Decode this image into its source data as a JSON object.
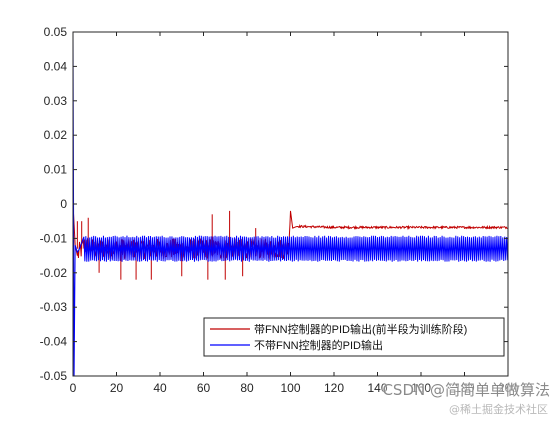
{
  "chart_data": {
    "type": "line",
    "title": "",
    "xlabel": "",
    "ylabel": "",
    "xlim": [
      0,
      200
    ],
    "ylim": [
      -0.05,
      0.05
    ],
    "x_ticks": [
      0,
      20,
      40,
      60,
      80,
      100,
      120,
      140,
      160,
      180,
      200
    ],
    "y_ticks": [
      0.05,
      0.04,
      0.03,
      0.02,
      0.01,
      0,
      -0.01,
      -0.02,
      -0.03,
      -0.04,
      -0.05
    ],
    "x_tick_labels": [
      "0",
      "20",
      "40",
      "60",
      "80",
      "100",
      "120",
      "140",
      "160",
      "180",
      "200"
    ],
    "y_tick_labels": [
      "0.05",
      "0.04",
      "0.03",
      "0.02",
      "0.01",
      "0",
      "-0.01",
      "-0.02",
      "-0.03",
      "-0.04",
      "-0.05"
    ],
    "grid": false,
    "legend_position": "bottom-right",
    "series": [
      {
        "name": "带FNN控制器的PID输出(前半段为训练阶段)",
        "color": "#c00000",
        "description_points": {
          "x": [
            0,
            1,
            2,
            5,
            10,
            30,
            60,
            90,
            99,
            100,
            101,
            103,
            120,
            160,
            200
          ],
          "y": [
            0,
            -0.012,
            -0.015,
            -0.012,
            -0.013,
            -0.013,
            -0.013,
            -0.013,
            -0.013,
            -0.002,
            -0.007,
            -0.0065,
            -0.0068,
            -0.0068,
            -0.0068
          ]
        },
        "spikes": {
          "x": [
            2,
            4,
            7,
            12,
            22,
            29,
            36,
            50,
            62,
            64,
            70,
            72,
            78,
            84
          ],
          "y": [
            -0.005,
            -0.005,
            -0.004,
            -0.02,
            -0.022,
            -0.022,
            -0.022,
            -0.021,
            -0.022,
            -0.003,
            -0.022,
            -0.002,
            -0.021,
            -0.007
          ]
        }
      },
      {
        "name": "不带FNN控制器的PID输出",
        "color": "#0000ff",
        "description_points": {
          "x": [
            0,
            0.5,
            1,
            2,
            3,
            5,
            200
          ],
          "y": [
            0.05,
            -0.05,
            -0.012,
            -0.014,
            -0.013,
            -0.013,
            -0.013
          ]
        },
        "band": {
          "x_start": 5,
          "x_end": 200,
          "upper": -0.0095,
          "lower": -0.0165
        }
      }
    ]
  },
  "watermark": {
    "text": "CSDN @简简单单做算法",
    "sub_text": "@稀土掘金技术社区"
  }
}
